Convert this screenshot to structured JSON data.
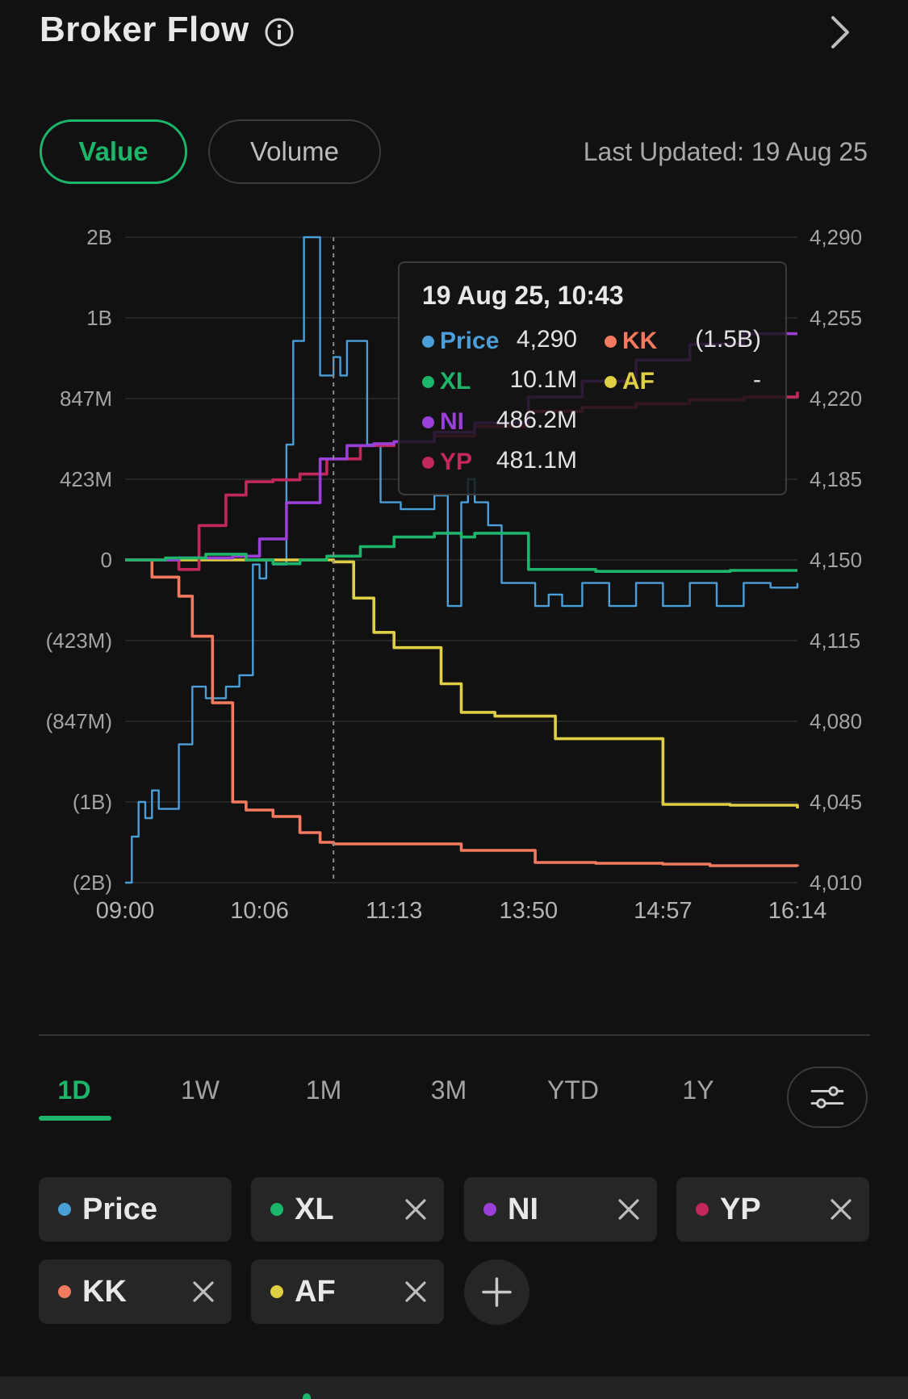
{
  "header": {
    "title": "Broker Flow"
  },
  "toggles": {
    "value_label": "Value",
    "volume_label": "Volume",
    "active": "Value"
  },
  "last_updated": "Last Updated: 19 Aug 25",
  "colors": {
    "accent": "#1db56a",
    "Price": "#4a9fd8",
    "XL": "#1db56a",
    "NI": "#9b3fd9",
    "YP": "#c2285e",
    "KK": "#f47a5f",
    "AF": "#e0cf45"
  },
  "chart_data": {
    "type": "line",
    "x_categories": [
      "09:00",
      "10:06",
      "11:13",
      "13:50",
      "14:57",
      "16:14"
    ],
    "left_axis": {
      "ticks": [
        "2B",
        "1B",
        "847M",
        "423M",
        "0",
        "(423M)",
        "(847M)",
        "(1B)",
        "(2B)"
      ]
    },
    "right_axis": {
      "ticks": [
        "4,290",
        "4,255",
        "4,220",
        "4,185",
        "4,150",
        "4,115",
        "4,080",
        "4,045",
        "4,010"
      ],
      "range": [
        4010,
        4290
      ]
    },
    "series": [
      {
        "name": "Price",
        "axis": "right",
        "x": [
          0,
          0.05,
          0.1,
          0.15,
          0.2,
          0.25,
          0.4,
          0.5,
          0.6,
          0.75,
          0.85,
          0.95,
          1.0,
          1.05,
          1.1,
          1.2,
          1.25,
          1.33,
          1.45,
          1.55,
          1.6,
          1.65,
          1.8,
          1.9,
          2.05,
          2.1,
          2.2,
          2.3,
          2.4,
          2.45,
          2.5,
          2.55,
          2.6,
          2.7,
          2.8,
          2.95,
          3.05,
          3.15,
          3.25,
          3.4,
          3.6,
          3.8,
          4.0,
          4.2,
          4.4,
          4.6,
          4.8,
          5.0
        ],
        "y": [
          4010,
          4030,
          4045,
          4038,
          4050,
          4042,
          4070,
          4095,
          4090,
          4095,
          4100,
          4148,
          4142,
          4150,
          4148,
          4200,
          4245,
          4290,
          4230,
          4238,
          4230,
          4245,
          4200,
          4175,
          4172,
          4172,
          4172,
          4178,
          4130,
          4130,
          4175,
          4185,
          4175,
          4165,
          4140,
          4140,
          4130,
          4135,
          4130,
          4140,
          4130,
          4140,
          4130,
          4140,
          4130,
          4140,
          4138,
          4140
        ]
      },
      {
        "name": "XL",
        "axis": "left",
        "x": [
          0,
          0.3,
          0.6,
          0.9,
          1.1,
          1.3,
          1.5,
          1.75,
          2.0,
          2.3,
          2.5,
          2.6,
          3.0,
          3.5,
          4.0,
          4.5,
          5.0
        ],
        "y": [
          0,
          10,
          30,
          0,
          -20,
          0,
          20,
          70,
          120,
          140,
          120,
          140,
          -50,
          -60,
          -60,
          -55,
          -55
        ]
      },
      {
        "name": "NI",
        "axis": "left",
        "x": [
          0,
          0.4,
          0.8,
          1.0,
          1.2,
          1.45,
          1.65,
          1.85,
          2.0,
          2.3,
          2.6,
          3.0,
          3.4,
          3.8,
          4.2,
          4.6,
          5.0
        ],
        "y": [
          0,
          10,
          20,
          110,
          300,
          530,
          600,
          610,
          620,
          670,
          720,
          850,
          880,
          920,
          950,
          970,
          970
        ]
      },
      {
        "name": "YP",
        "axis": "left",
        "x": [
          0,
          0.4,
          0.55,
          0.75,
          0.9,
          1.1,
          1.3,
          1.5,
          1.75,
          2.0,
          2.3,
          2.6,
          3.0,
          3.4,
          3.8,
          4.2,
          4.6,
          5.0
        ],
        "y": [
          0,
          -50,
          180,
          340,
          410,
          420,
          450,
          530,
          600,
          620,
          650,
          700,
          780,
          800,
          820,
          840,
          850,
          860
        ]
      },
      {
        "name": "KK",
        "axis": "left",
        "x": [
          0,
          0.2,
          0.4,
          0.5,
          0.65,
          0.8,
          0.9,
          1.1,
          1.3,
          1.45,
          1.55,
          1.8,
          2.0,
          2.5,
          3.05,
          3.5,
          4.0,
          4.35,
          5.0
        ],
        "y": [
          0,
          -90,
          -190,
          -400,
          -750,
          -1000,
          -1100,
          -1180,
          -1380,
          -1500,
          -1520,
          -1520,
          -1520,
          -1600,
          -1750,
          -1760,
          -1770,
          -1790,
          -1800
        ]
      },
      {
        "name": "AF",
        "axis": "left",
        "x": [
          0,
          0.5,
          1.0,
          1.5,
          1.55,
          1.7,
          1.85,
          2.0,
          2.2,
          2.35,
          2.5,
          2.75,
          3.0,
          3.2,
          3.5,
          3.8,
          4.0,
          4.2,
          4.5,
          5.0
        ],
        "y": [
          0,
          0,
          0,
          0,
          -10,
          -200,
          -380,
          -460,
          -460,
          -650,
          -800,
          -820,
          -820,
          -880,
          -880,
          -880,
          -1030,
          -1030,
          -1040,
          -1080
        ]
      }
    ],
    "crosshair_x": 1.55
  },
  "tooltip": {
    "title": "19 Aug 25, 10:43",
    "rows": [
      {
        "name": "Price",
        "value": "4,290",
        "name2": "KK",
        "value2": "(1.5B)"
      },
      {
        "name": "XL",
        "value": "10.1M",
        "name2": "AF",
        "value2": "-"
      },
      {
        "name": "NI",
        "value": "486.2M"
      },
      {
        "name": "YP",
        "value": "481.1M"
      }
    ]
  },
  "periods": [
    "1D",
    "1W",
    "1M",
    "3M",
    "YTD",
    "1Y"
  ],
  "active_period": "1D",
  "chips": [
    "Price",
    "XL",
    "NI",
    "YP",
    "KK",
    "AF"
  ],
  "icons": {
    "info": "info-icon",
    "chevron": "chevron-right-icon",
    "settings": "sliders-icon",
    "close": "close-icon",
    "add": "plus-icon"
  }
}
